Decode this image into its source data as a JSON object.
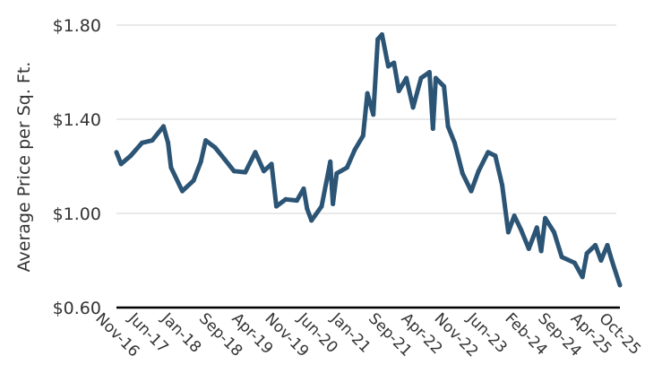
{
  "chart_data": {
    "type": "line",
    "title": "",
    "xlabel": "",
    "ylabel": "Average Price per Sq. Ft.",
    "ylim": [
      0.6,
      1.8
    ],
    "xlim": [
      "2016-11-01",
      "2025-10-15"
    ],
    "yticks": [
      0.6,
      1.0,
      1.4,
      1.8
    ],
    "ytick_labels": [
      "$0.60",
      "$1.00",
      "$1.40",
      "$1.80"
    ],
    "xtick_labels": [
      "Nov-16",
      "Jun-17",
      "Jan-18",
      "Sep-18",
      "Apr-19",
      "Nov-19",
      "Jun-20",
      "Jan-21",
      "Sep-21",
      "Apr-22",
      "Nov-22",
      "Jun-23",
      "Feb-24",
      "Sep-24",
      "Apr-25",
      "Oct-25"
    ],
    "xtick_dates": [
      "2016-11-01",
      "2017-06-01",
      "2018-01-01",
      "2018-09-01",
      "2019-04-01",
      "2019-11-01",
      "2020-06-01",
      "2021-01-01",
      "2021-09-01",
      "2022-04-01",
      "2022-11-01",
      "2023-06-01",
      "2024-02-01",
      "2024-09-01",
      "2025-04-01",
      "2025-10-01"
    ],
    "grid": "horizontal",
    "legend": "none",
    "colors": {
      "line": "#2b5475",
      "grid": "#e2e2e2",
      "axis": "#000000"
    },
    "series": [
      {
        "x": [
          "2016-11-01",
          "2016-12-01",
          "2017-02-01",
          "2017-04-15",
          "2017-06-20",
          "2017-09-01",
          "2017-10-01",
          "2017-10-20",
          "2018-01-01",
          "2018-03-15",
          "2018-05-01",
          "2018-06-01",
          "2018-08-01",
          "2018-10-01",
          "2018-12-01",
          "2019-02-12",
          "2019-04-18",
          "2019-06-12",
          "2019-08-01",
          "2019-09-01",
          "2019-11-01",
          "2020-01-12",
          "2020-02-25",
          "2020-03-18",
          "2020-04-15",
          "2020-06-20",
          "2020-08-15",
          "2020-09-01",
          "2020-09-25",
          "2020-12-01",
          "2021-01-20",
          "2021-03-15",
          "2021-04-12",
          "2021-05-20",
          "2021-06-18",
          "2021-07-15",
          "2021-08-25",
          "2021-10-01",
          "2021-11-01",
          "2021-12-20",
          "2022-02-01",
          "2022-03-25",
          "2022-05-18",
          "2022-06-10",
          "2022-06-28",
          "2022-08-20",
          "2022-09-15",
          "2022-10-28",
          "2022-12-18",
          "2023-02-12",
          "2023-04-01",
          "2023-06-01",
          "2023-07-18",
          "2023-09-01",
          "2023-10-10",
          "2023-11-18",
          "2024-01-01",
          "2024-02-20",
          "2024-04-12",
          "2024-05-10",
          "2024-06-05",
          "2024-08-01",
          "2024-09-20",
          "2024-12-12",
          "2025-02-01",
          "2025-03-01",
          "2025-04-25",
          "2025-06-01",
          "2025-07-12",
          "2025-08-10",
          "2025-10-01"
        ],
        "y": [
          1.26,
          1.21,
          1.245,
          1.3,
          1.31,
          1.37,
          1.3,
          1.195,
          1.095,
          1.14,
          1.22,
          1.31,
          1.28,
          1.23,
          1.18,
          1.175,
          1.26,
          1.18,
          1.21,
          1.03,
          1.06,
          1.055,
          1.105,
          1.02,
          0.97,
          1.03,
          1.22,
          1.04,
          1.17,
          1.195,
          1.27,
          1.33,
          1.51,
          1.42,
          1.74,
          1.76,
          1.625,
          1.64,
          1.52,
          1.575,
          1.45,
          1.575,
          1.6,
          1.36,
          1.575,
          1.54,
          1.37,
          1.3,
          1.17,
          1.095,
          1.18,
          1.26,
          1.245,
          1.12,
          0.92,
          0.99,
          0.93,
          0.85,
          0.94,
          0.84,
          0.98,
          0.92,
          0.815,
          0.79,
          0.73,
          0.83,
          0.865,
          0.8,
          0.865,
          0.8,
          0.695
        ]
      }
    ]
  }
}
